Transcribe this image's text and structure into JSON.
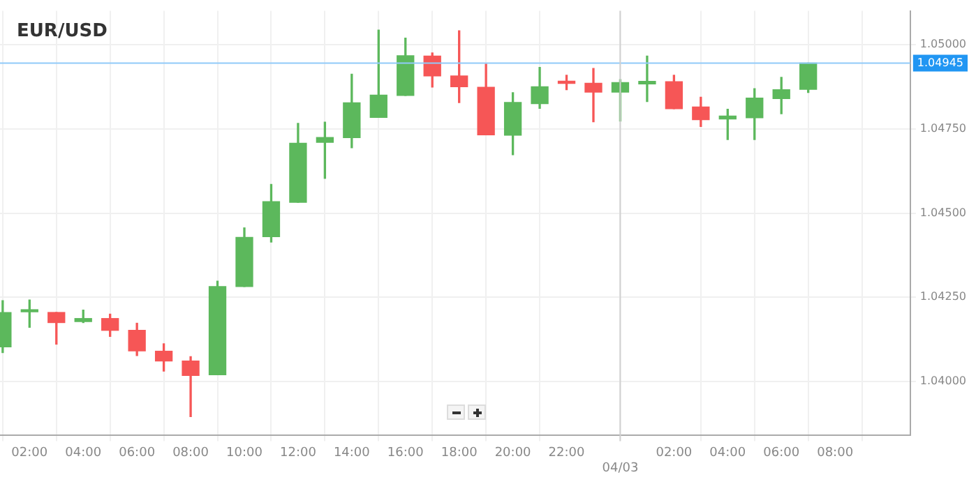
{
  "chart_data": {
    "type": "candlestick",
    "title": "EUR/USD",
    "x": [
      "--03-03T01:00",
      "--03-03T02:00",
      "--03-03T03:00",
      "--03-03T04:00",
      "--03-03T05:00",
      "--03-03T06:00",
      "--03-03T07:00",
      "--03-03T08:00",
      "--03-03T09:00",
      "--03-03T10:00",
      "--03-03T11:00",
      "--03-03T12:00",
      "--03-03T13:00",
      "--03-03T14:00",
      "--03-03T15:00",
      "--03-03T16:00",
      "--03-03T17:00",
      "--03-03T18:00",
      "--03-03T19:00",
      "--03-03T20:00",
      "--03-03T21:00",
      "--03-03T22:00",
      "--03-03T23:00",
      "--03-04T00:00",
      "--03-04T01:00",
      "--03-04T02:00",
      "--03-04T03:00",
      "--03-04T04:00",
      "--03-04T05:00",
      "--03-04T06:00",
      "--03-04T07:00"
    ],
    "ohlc": [
      [
        1.04103,
        1.0424,
        1.04086,
        1.04205
      ],
      [
        1.04207,
        1.04242,
        1.04161,
        1.04209
      ],
      [
        1.04205,
        1.04205,
        1.04111,
        1.04175
      ],
      [
        1.04178,
        1.04212,
        1.04175,
        1.04187
      ],
      [
        1.04187,
        1.042,
        1.04134,
        1.04152
      ],
      [
        1.04152,
        1.04173,
        1.04077,
        1.04091
      ],
      [
        1.0409,
        1.04112,
        1.04031,
        1.04061
      ],
      [
        1.04061,
        1.04074,
        1.03896,
        1.04018
      ],
      [
        1.0402,
        1.04298,
        1.0402,
        1.04282
      ],
      [
        1.04282,
        1.04456,
        1.04282,
        1.04428
      ],
      [
        1.0443,
        1.04585,
        1.04414,
        1.04534
      ],
      [
        1.04532,
        1.04766,
        1.04532,
        1.04707
      ],
      [
        1.0471,
        1.0477,
        1.04603,
        1.04724
      ],
      [
        1.04724,
        1.04912,
        1.04694,
        1.04827
      ],
      [
        1.04784,
        1.05043,
        1.04784,
        1.0485
      ],
      [
        1.04849,
        1.05019,
        1.04849,
        1.04967
      ],
      [
        1.04966,
        1.04975,
        1.04874,
        1.04907
      ],
      [
        1.04907,
        1.05041,
        1.04828,
        1.04875
      ],
      [
        1.04873,
        1.04942,
        1.04732,
        1.04732
      ],
      [
        1.04731,
        1.04857,
        1.04673,
        1.04828
      ],
      [
        1.04825,
        1.04932,
        1.04811,
        1.04875
      ],
      [
        1.04887,
        1.04909,
        1.04866,
        1.04885
      ],
      [
        1.04885,
        1.04929,
        1.04771,
        1.04859
      ],
      [
        1.04859,
        1.04896,
        1.04773,
        1.04887
      ],
      [
        1.04883,
        1.04966,
        1.04831,
        1.04891
      ],
      [
        1.0489,
        1.04909,
        1.0481,
        1.0481
      ],
      [
        1.04815,
        1.04844,
        1.04757,
        1.04777
      ],
      [
        1.04779,
        1.04808,
        1.04718,
        1.04788
      ],
      [
        1.04783,
        1.04869,
        1.04718,
        1.04841
      ],
      [
        1.0484,
        1.04903,
        1.04795,
        1.04866
      ],
      [
        1.04867,
        1.04945,
        1.04858,
        1.04945
      ]
    ],
    "colors": [
      "#5cb85c",
      "#5cb85c",
      "#f65656",
      "#5cb85c",
      "#f65656",
      "#f65656",
      "#f65656",
      "#f65656",
      "#5cb85c",
      "#5cb85c",
      "#5cb85c",
      "#5cb85c",
      "#5cb85c",
      "#5cb85c",
      "#5cb85c",
      "#5cb85c",
      "#f65656",
      "#f65656",
      "#f65656",
      "#5cb85c",
      "#5cb85c",
      "#f65656",
      "#f65656",
      "#5cb85c",
      "#5cb85c",
      "#f65656",
      "#f65656",
      "#5cb85c",
      "#5cb85c",
      "#5cb85c",
      "#5cb85c"
    ],
    "xlim": [
      "--03-03T00:54",
      "--03-04T10:48"
    ],
    "xticks": [
      {
        "value": "--03-03T02:00",
        "label": "02:00"
      },
      {
        "value": "--03-03T04:00",
        "label": "04:00"
      },
      {
        "value": "--03-03T06:00",
        "label": "06:00"
      },
      {
        "value": "--03-03T08:00",
        "label": "08:00"
      },
      {
        "value": "--03-03T10:00",
        "label": "10:00"
      },
      {
        "value": "--03-03T12:00",
        "label": "12:00"
      },
      {
        "value": "--03-03T14:00",
        "label": "14:00"
      },
      {
        "value": "--03-03T16:00",
        "label": "16:00"
      },
      {
        "value": "--03-03T18:00",
        "label": "18:00"
      },
      {
        "value": "--03-03T20:00",
        "label": "20:00"
      },
      {
        "value": "--03-03T22:00",
        "label": "22:00"
      },
      {
        "value": "--03-04T02:00",
        "label": "02:00"
      },
      {
        "value": "--03-04T04:00",
        "label": "04:00"
      },
      {
        "value": "--03-04T06:00",
        "label": "06:00"
      },
      {
        "value": "--03-04T08:00",
        "label": "08:00"
      }
    ],
    "ylim": [
      1.0384,
      1.051
    ],
    "yticks": [
      {
        "value": 1.04,
        "label": "1.04000"
      },
      {
        "value": 1.0425,
        "label": "1.04250"
      },
      {
        "value": 1.045,
        "label": "1.04500"
      },
      {
        "value": 1.0475,
        "label": "1.04750"
      },
      {
        "value": 1.05,
        "label": "1.05000"
      }
    ],
    "grid": true,
    "ref_lines": [
      {
        "axis": "y",
        "value": 1.04945,
        "label": "1.04945",
        "color": "#90caf9"
      },
      {
        "axis": "x",
        "value": "--03-04T00:00",
        "label": "04/03",
        "color": "#d0d0d0"
      }
    ]
  }
}
